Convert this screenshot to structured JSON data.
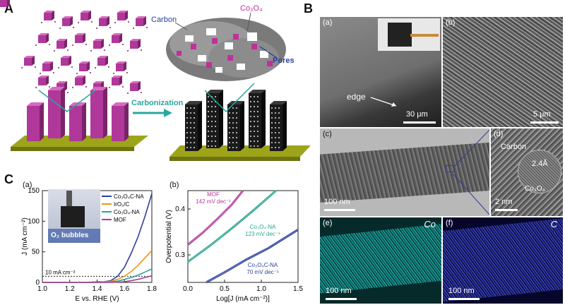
{
  "panelA": {
    "label": "A",
    "carbon": "Carbon",
    "co3o4": "Co₃O₄",
    "pores": "Pores",
    "arrow": "Carbonization"
  },
  "panelB": {
    "label": "B",
    "a": {
      "tag": "(a)",
      "edge": "edge",
      "scale": "30 μm"
    },
    "b": {
      "tag": "(b)",
      "scale": "5 μm"
    },
    "c": {
      "tag": "(c)",
      "scale": "100 nm"
    },
    "d": {
      "tag": "(d)",
      "carbon": "Carbon",
      "lattice": "2.4Å",
      "co3o4": "Co₃O₄",
      "scale": "2 nm"
    },
    "e": {
      "tag": "(e)",
      "element": "Co",
      "scale": "100 nm"
    },
    "f": {
      "tag": "(f)",
      "element": "C",
      "scale": "100 nm"
    }
  },
  "panelC": {
    "label": "C",
    "a_tag": "(a)",
    "b_tag": "(b)",
    "bubbles": "O₂ bubbles"
  },
  "chart_data": [
    {
      "type": "line",
      "xlabel": "E vs. RHE (V)",
      "ylabel": "J (mA cm⁻²)",
      "xlim": [
        1.0,
        1.8
      ],
      "ylim": [
        0,
        150
      ],
      "xticks": [
        "1.0",
        "1.2",
        "1.4",
        "1.6",
        "1.8"
      ],
      "yticks": [
        "0",
        "50",
        "100",
        "150"
      ],
      "annotation": "10 mA cm⁻²",
      "legend_position": "top-right",
      "series": [
        {
          "name": "Co₃O₄C-NA",
          "color": "#2b3f9e",
          "x": [
            1.0,
            1.3,
            1.45,
            1.5,
            1.55,
            1.6,
            1.65,
            1.7,
            1.75,
            1.8
          ],
          "y": [
            0,
            0,
            1,
            3,
            10,
            25,
            48,
            75,
            108,
            145
          ]
        },
        {
          "name": "IrO₂/C",
          "color": "#e8961c",
          "x": [
            1.0,
            1.4,
            1.5,
            1.55,
            1.6,
            1.65,
            1.7,
            1.75,
            1.8
          ],
          "y": [
            0,
            0,
            2,
            5,
            10,
            18,
            28,
            40,
            52
          ]
        },
        {
          "name": "Co₃O₄-NA",
          "color": "#2aa68f",
          "x": [
            1.0,
            1.45,
            1.55,
            1.6,
            1.65,
            1.7,
            1.75,
            1.8
          ],
          "y": [
            0,
            0,
            2,
            5,
            8,
            12,
            17,
            22
          ]
        },
        {
          "name": "MOF",
          "color": "#b03a9a",
          "x": [
            1.0,
            1.5,
            1.6,
            1.65,
            1.7,
            1.75,
            1.8
          ],
          "y": [
            0,
            0,
            1,
            3,
            5,
            8,
            11
          ]
        }
      ]
    },
    {
      "type": "line",
      "xlabel": "Log[J (mA cm⁻²)]",
      "ylabel": "Overpotential (V)",
      "xlim": [
        0,
        1.5
      ],
      "ylim": [
        0.24,
        0.44
      ],
      "xticks": [
        "0.0",
        "0.5",
        "1.0",
        "1.5"
      ],
      "yticks": [
        "0.3",
        "0.4"
      ],
      "series": [
        {
          "name": "MOF",
          "label": "MOF",
          "slope": "142 mV dec⁻¹",
          "color": "#b03a9a",
          "x": [
            0,
            0.2,
            0.4,
            0.6,
            0.75
          ],
          "y": [
            0.322,
            0.348,
            0.378,
            0.41,
            0.44
          ]
        },
        {
          "name": "Co₃O₄-NA",
          "label": "Co₃O₄-NA",
          "slope": "123 mV dec⁻¹",
          "color": "#2aa68f",
          "x": [
            0,
            0.3,
            0.6,
            0.9,
            1.2
          ],
          "y": [
            0.285,
            0.32,
            0.358,
            0.398,
            0.44
          ]
        },
        {
          "name": "Co₃O₄C-NA",
          "label": "Co₃O₄C-NA",
          "slope": "70 mV dec⁻¹",
          "color": "#2b3f9e",
          "x": [
            0.25,
            0.5,
            0.8,
            1.1,
            1.5
          ],
          "y": [
            0.24,
            0.262,
            0.29,
            0.315,
            0.355
          ]
        }
      ]
    }
  ]
}
